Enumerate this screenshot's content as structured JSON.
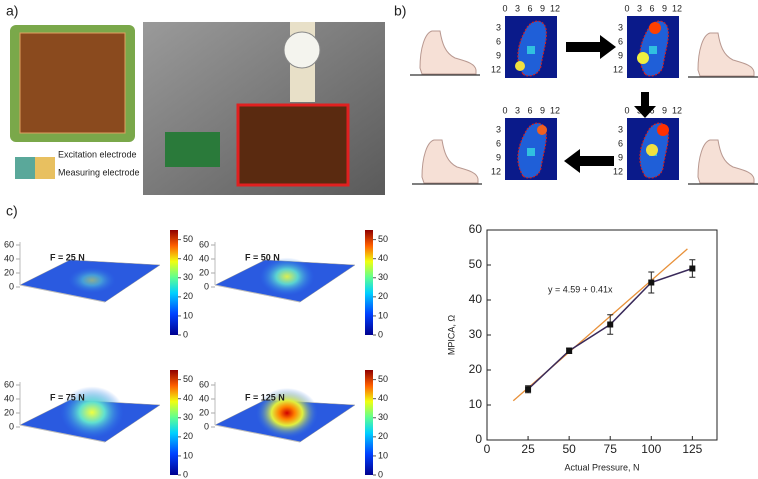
{
  "panel_a": {
    "label": "a)",
    "legend": [
      "Excitation electrode",
      "Measuring electrode"
    ]
  },
  "panel_b": {
    "label": "b)",
    "x_ticks": [
      0,
      3,
      6,
      9,
      12
    ],
    "y_ticks": [
      3,
      6,
      9,
      12
    ]
  },
  "panel_c": {
    "label": "c)",
    "surfaces": {
      "titles": [
        "F = 25 N",
        "F = 50 N",
        "F = 75 N",
        "F = 125 N"
      ],
      "z_lim": [
        0,
        60
      ],
      "z_ticks": [
        0,
        20,
        40,
        60
      ],
      "colorbar_lim": [
        0,
        54
      ],
      "colorbar_ticks": [
        0,
        10,
        20,
        30,
        40,
        50
      ]
    }
  },
  "chart_data": {
    "type": "line",
    "xlabel": "Actual Pressure, N",
    "ylabel": "MPICA, Ω",
    "x": [
      25,
      50,
      75,
      100,
      125
    ],
    "values": [
      14.5,
      25.5,
      33,
      45,
      49
    ],
    "errors": [
      1,
      0.8,
      2.8,
      3,
      2.5
    ],
    "color": "#3a2a5a",
    "xlim": [
      0,
      140
    ],
    "ylim": [
      0,
      60
    ],
    "xticks": [
      0,
      25,
      50,
      75,
      100,
      125
    ],
    "yticks": [
      0,
      10,
      20,
      30,
      40,
      50,
      60
    ],
    "fit": {
      "label": "y = 4.59 + 0.41x",
      "x": [
        16,
        122
      ],
      "values": [
        11.2,
        54.6
      ],
      "color": "#e8913a"
    }
  }
}
